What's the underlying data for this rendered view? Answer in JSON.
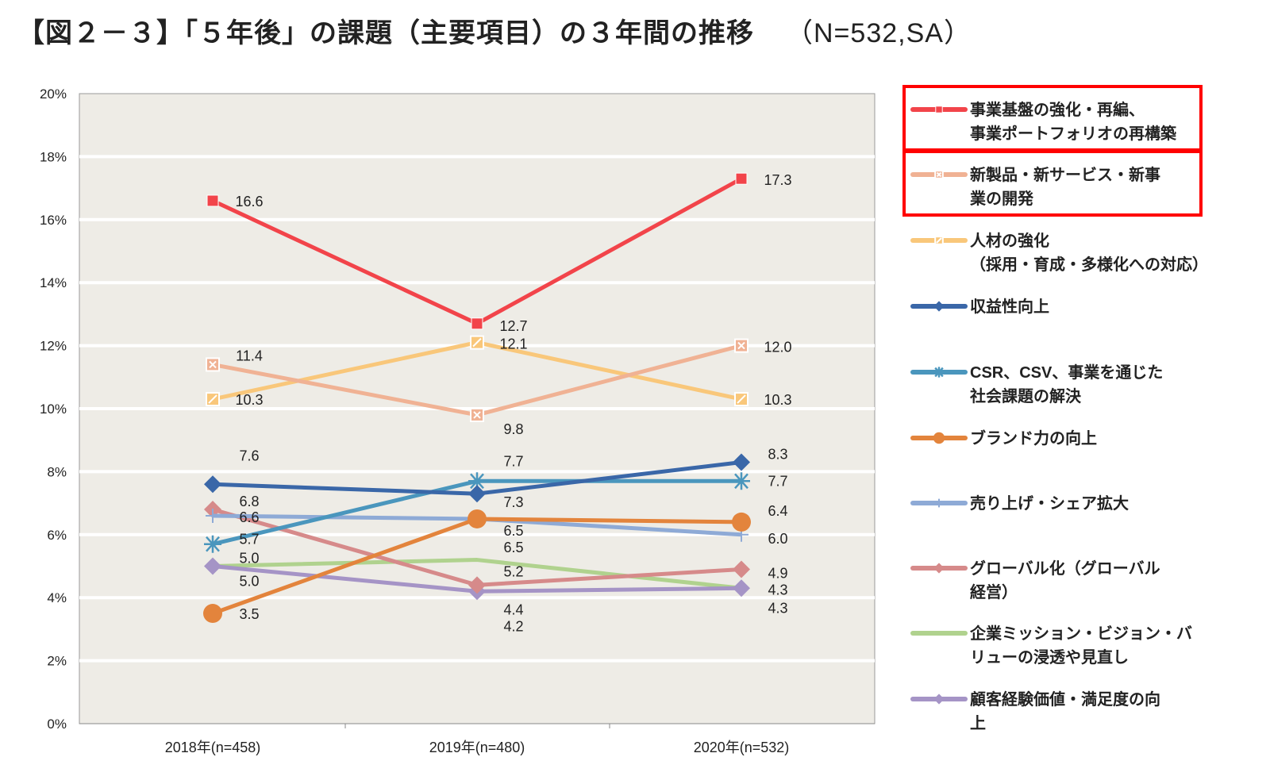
{
  "title": "【図２－３】「５年後」の課題（主要項目）の３年間の推移",
  "subtitle": "（N=532,SA）",
  "chart_data": {
    "type": "line",
    "categories": [
      "2018年(n=458)",
      "2019年(n=480)",
      "2020年(n=532)"
    ],
    "ylim": [
      0,
      20
    ],
    "yticks": [
      "0%",
      "2%",
      "4%",
      "6%",
      "8%",
      "10%",
      "12%",
      "14%",
      "16%",
      "18%",
      "20%"
    ],
    "grid": true,
    "legend_position": "right",
    "series": [
      {
        "name": [
          "事業基盤の強化・再編、",
          "事業ポートフォリオの再構築"
        ],
        "values": [
          16.6,
          12.7,
          17.3
        ],
        "labels": [
          "16.6",
          "12.7",
          "17.3"
        ],
        "color": "#f2444a",
        "marker": "square",
        "highlighted": true
      },
      {
        "name": [
          "新製品・新サービス・新事",
          "業の開発"
        ],
        "values": [
          11.4,
          9.8,
          12.0
        ],
        "labels": [
          "11.4",
          "9.8",
          "12.0"
        ],
        "color": "#f0b294",
        "marker": "square-x",
        "highlighted": true
      },
      {
        "name": [
          "人材の強化",
          "（採用・育成・多様化への対応）"
        ],
        "values": [
          10.3,
          12.1,
          10.3
        ],
        "labels": [
          "10.3",
          "12.1",
          "10.3"
        ],
        "color": "#f9c77a",
        "marker": "square-hatch"
      },
      {
        "name": [
          "収益性向上"
        ],
        "values": [
          7.6,
          7.3,
          8.3
        ],
        "labels": [
          "7.6",
          "7.3",
          "8.3"
        ],
        "color": "#3a67a8",
        "marker": "diamond"
      },
      {
        "name": [
          "CSR、CSV、事業を通じた",
          "社会課題の解決"
        ],
        "values": [
          5.7,
          7.7,
          7.7
        ],
        "labels": [
          "5.7",
          "7.7",
          "7.7"
        ],
        "color": "#4a96bd",
        "marker": "asterisk"
      },
      {
        "name": [
          "ブランド力の向上"
        ],
        "values": [
          3.5,
          6.5,
          6.4
        ],
        "labels": [
          "3.5",
          "6.5",
          "6.4"
        ],
        "color": "#e3843c",
        "marker": "circle"
      },
      {
        "name": [
          "売り上げ・シェア拡大"
        ],
        "values": [
          6.6,
          6.5,
          6.0
        ],
        "labels": [
          "6.6",
          "6.5",
          "6.0"
        ],
        "color": "#8eaad6",
        "marker": "plus"
      },
      {
        "name": [
          "グローバル化（グローバル",
          "経営）"
        ],
        "values": [
          6.8,
          4.4,
          4.9
        ],
        "labels": [
          "6.8",
          "4.4",
          "4.9"
        ],
        "color": "#d68a8a",
        "marker": "diamond"
      },
      {
        "name": [
          "企業ミッション・ビジョン・バ",
          "リューの浸透や見直し"
        ],
        "values": [
          5.0,
          5.2,
          4.3
        ],
        "labels": [
          "5.0",
          "5.2",
          "4.3"
        ],
        "color": "#b0d28e",
        "marker": "none"
      },
      {
        "name": [
          "顧客経験価値・満足度の向",
          "上"
        ],
        "values": [
          5.0,
          4.2,
          4.3
        ],
        "labels": [
          "5.0",
          "4.2",
          "4.3"
        ],
        "color": "#a594c6",
        "marker": "diamond"
      }
    ]
  }
}
